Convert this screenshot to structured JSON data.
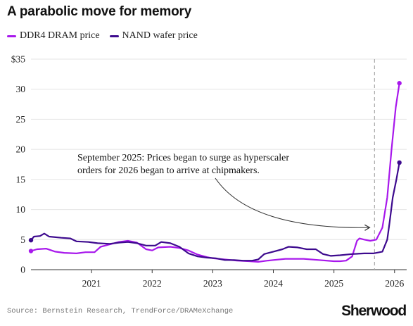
{
  "title": "A parabolic move for memory",
  "legend": [
    {
      "label": "DDR4 DRAM price",
      "color": "#a818ec"
    },
    {
      "label": "NAND wafer price",
      "color": "#3d0a8e"
    }
  ],
  "source": "Source: Bernstein Research, TrendForce/DRAMeXchange",
  "brand": "Sherwood",
  "chart_data": {
    "type": "line",
    "ylim": [
      0,
      35
    ],
    "xlim": [
      2020.0,
      2026.2
    ],
    "y_ticks": [
      {
        "value": 0,
        "label": "0"
      },
      {
        "value": 5,
        "label": "5"
      },
      {
        "value": 10,
        "label": "10"
      },
      {
        "value": 15,
        "label": "15"
      },
      {
        "value": 20,
        "label": "20"
      },
      {
        "value": 25,
        "label": "25"
      },
      {
        "value": 30,
        "label": "30"
      },
      {
        "value": 35,
        "label": "$35"
      }
    ],
    "x_ticks": [
      {
        "value": 2021,
        "label": "2021"
      },
      {
        "value": 2022,
        "label": "2022"
      },
      {
        "value": 2023,
        "label": "2023"
      },
      {
        "value": 2024,
        "label": "2024"
      },
      {
        "value": 2025,
        "label": "2025"
      },
      {
        "value": 2026,
        "label": "2026"
      }
    ],
    "grid": true,
    "marker_date": 2025.67,
    "annotation": {
      "lines": [
        "September 2025: Prices began to surge as hyperscaler",
        "orders for 2026 began to arrive at chipmakers."
      ]
    },
    "series": [
      {
        "name": "DDR4 DRAM price",
        "color": "#a818ec",
        "points": [
          [
            2020.0,
            3.1
          ],
          [
            2020.1,
            3.4
          ],
          [
            2020.25,
            3.5
          ],
          [
            2020.4,
            3.0
          ],
          [
            2020.55,
            2.8
          ],
          [
            2020.75,
            2.7
          ],
          [
            2020.9,
            2.9
          ],
          [
            2021.05,
            2.9
          ],
          [
            2021.15,
            3.8
          ],
          [
            2021.3,
            4.2
          ],
          [
            2021.45,
            4.6
          ],
          [
            2021.6,
            4.8
          ],
          [
            2021.75,
            4.5
          ],
          [
            2021.9,
            3.4
          ],
          [
            2022.0,
            3.2
          ],
          [
            2022.1,
            3.7
          ],
          [
            2022.3,
            3.8
          ],
          [
            2022.45,
            3.6
          ],
          [
            2022.6,
            3.2
          ],
          [
            2022.75,
            2.5
          ],
          [
            2022.9,
            2.1
          ],
          [
            2023.0,
            1.9
          ],
          [
            2023.2,
            1.7
          ],
          [
            2023.4,
            1.5
          ],
          [
            2023.6,
            1.4
          ],
          [
            2023.75,
            1.3
          ],
          [
            2023.9,
            1.5
          ],
          [
            2024.0,
            1.6
          ],
          [
            2024.2,
            1.8
          ],
          [
            2024.5,
            1.8
          ],
          [
            2024.75,
            1.6
          ],
          [
            2025.0,
            1.4
          ],
          [
            2025.1,
            1.4
          ],
          [
            2025.2,
            1.5
          ],
          [
            2025.3,
            2.2
          ],
          [
            2025.38,
            4.8
          ],
          [
            2025.42,
            5.2
          ],
          [
            2025.5,
            5.0
          ],
          [
            2025.6,
            4.8
          ],
          [
            2025.7,
            5.0
          ],
          [
            2025.8,
            7.0
          ],
          [
            2025.88,
            12.0
          ],
          [
            2025.95,
            20.0
          ],
          [
            2026.02,
            27.0
          ],
          [
            2026.08,
            31.0
          ]
        ]
      },
      {
        "name": "NAND wafer price",
        "color": "#3d0a8e",
        "points": [
          [
            2020.0,
            4.9
          ],
          [
            2020.05,
            5.5
          ],
          [
            2020.15,
            5.6
          ],
          [
            2020.22,
            6.0
          ],
          [
            2020.3,
            5.5
          ],
          [
            2020.5,
            5.3
          ],
          [
            2020.65,
            5.2
          ],
          [
            2020.75,
            4.7
          ],
          [
            2020.95,
            4.6
          ],
          [
            2021.1,
            4.4
          ],
          [
            2021.3,
            4.3
          ],
          [
            2021.45,
            4.5
          ],
          [
            2021.6,
            4.6
          ],
          [
            2021.75,
            4.4
          ],
          [
            2021.9,
            4.0
          ],
          [
            2022.05,
            4.0
          ],
          [
            2022.15,
            4.6
          ],
          [
            2022.3,
            4.4
          ],
          [
            2022.45,
            3.8
          ],
          [
            2022.6,
            2.7
          ],
          [
            2022.75,
            2.2
          ],
          [
            2022.9,
            2.0
          ],
          [
            2023.05,
            1.9
          ],
          [
            2023.2,
            1.6
          ],
          [
            2023.35,
            1.6
          ],
          [
            2023.5,
            1.5
          ],
          [
            2023.65,
            1.5
          ],
          [
            2023.75,
            1.7
          ],
          [
            2023.85,
            2.6
          ],
          [
            2024.0,
            3.0
          ],
          [
            2024.15,
            3.4
          ],
          [
            2024.25,
            3.8
          ],
          [
            2024.4,
            3.7
          ],
          [
            2024.55,
            3.4
          ],
          [
            2024.7,
            3.4
          ],
          [
            2024.82,
            2.6
          ],
          [
            2024.95,
            2.3
          ],
          [
            2025.1,
            2.4
          ],
          [
            2025.3,
            2.6
          ],
          [
            2025.5,
            2.7
          ],
          [
            2025.65,
            2.7
          ],
          [
            2025.8,
            3.0
          ],
          [
            2025.88,
            5.0
          ],
          [
            2025.92,
            8.0
          ],
          [
            2025.97,
            12.0
          ],
          [
            2026.03,
            15.0
          ],
          [
            2026.08,
            17.8
          ]
        ]
      }
    ]
  }
}
